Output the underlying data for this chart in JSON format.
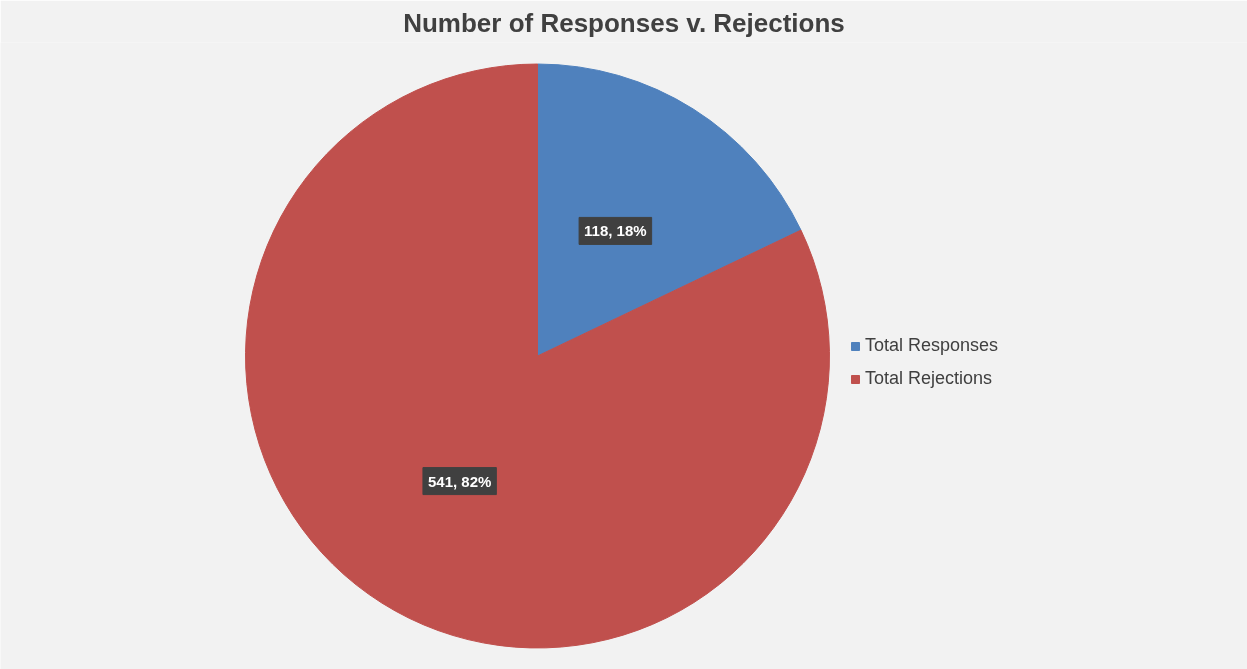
{
  "chart_data": {
    "type": "pie",
    "title": "Number of Responses v. Rejections",
    "categories": [
      "Total Responses",
      "Total Rejections"
    ],
    "values": [
      118,
      541
    ],
    "colors": [
      "#4f81bd",
      "#c0504d"
    ],
    "value_labels": [
      "118, 18%",
      "541, 82%"
    ],
    "legend": "right"
  }
}
